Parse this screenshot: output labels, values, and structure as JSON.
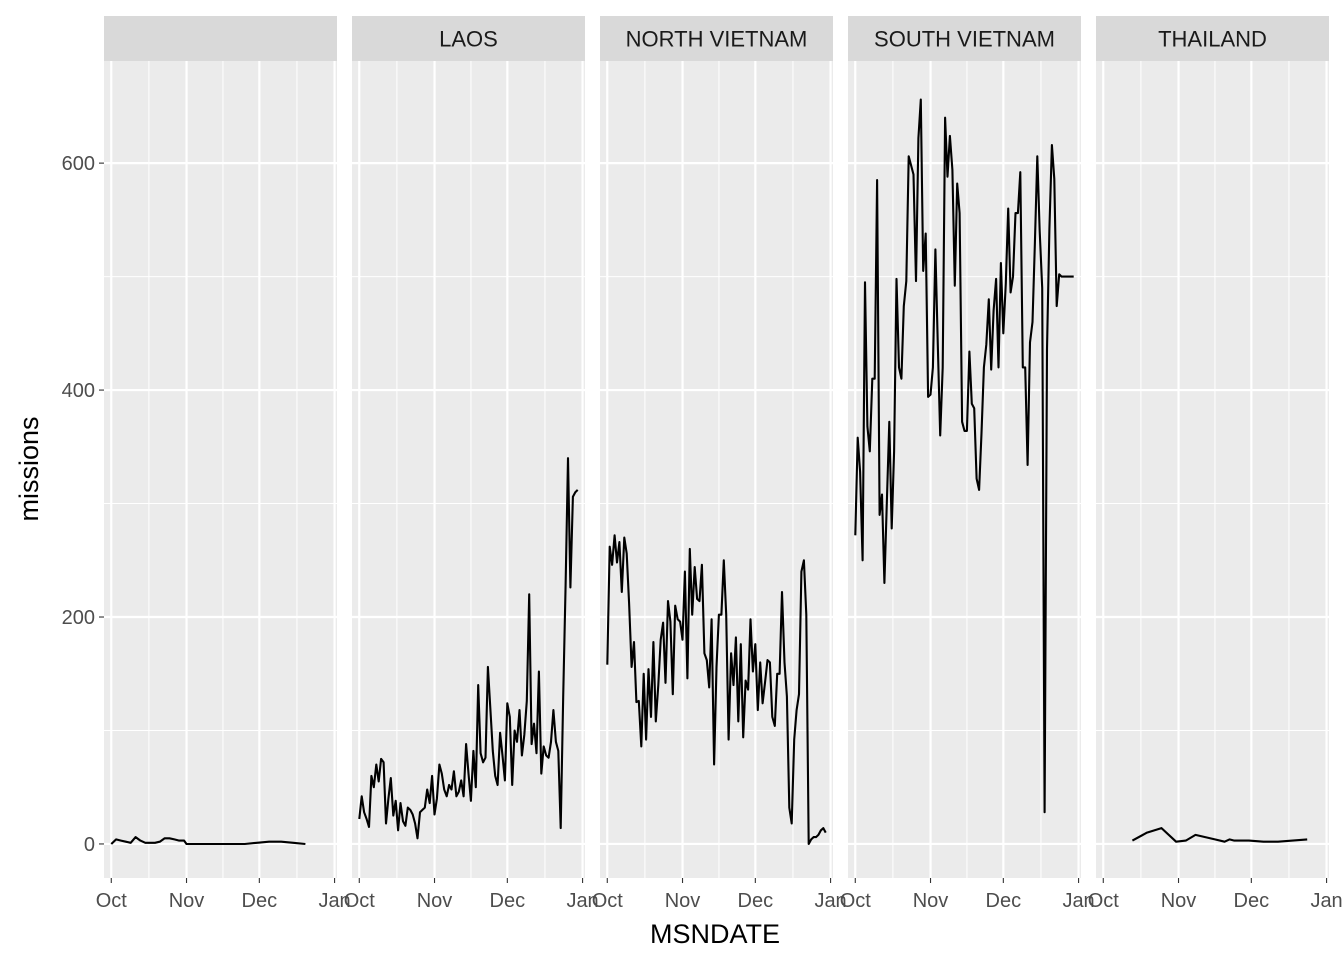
{
  "chart_data": {
    "type": "line",
    "layout": "facet_wrap",
    "xlabel": "MSNDATE",
    "ylabel": "missions",
    "x_ticks": [
      "Oct",
      "Nov",
      "Dec",
      "Jan"
    ],
    "y_ticks": [
      0,
      200,
      400,
      600
    ],
    "ylim": [
      -30,
      690
    ],
    "xlim_days": [
      -3,
      93
    ],
    "grid": true,
    "legend": "none",
    "colors": {
      "panel_bg": "#ebebeb",
      "strip_bg": "#d9d9d9",
      "grid": "#ffffff",
      "line": "#000000"
    },
    "facets": [
      {
        "label": "",
        "series": [
          {
            "x": [
              0,
              2,
              4,
              6,
              8,
              10,
              12,
              14,
              16,
              18,
              20,
              22,
              24,
              26,
              28,
              30,
              31,
              35,
              40,
              45,
              50,
              55,
              60,
              65,
              70,
              75,
              80
            ],
            "y": [
              0,
              4,
              3,
              2,
              1,
              6,
              3,
              1,
              1,
              1,
              2,
              5,
              5,
              4,
              3,
              3,
              0,
              0,
              0,
              0,
              0,
              0,
              1,
              2,
              2,
              1,
              0
            ]
          }
        ]
      },
      {
        "label": "LAOS",
        "series": [
          {
            "x": [
              0,
              1,
              2,
              3,
              4,
              5,
              6,
              7,
              8,
              9,
              10,
              11,
              12,
              13,
              14,
              15,
              16,
              17,
              18,
              19,
              20,
              21,
              22,
              23,
              24,
              25,
              26,
              27,
              28,
              29,
              30,
              31,
              32,
              33,
              34,
              35,
              36,
              37,
              38,
              39,
              40,
              41,
              42,
              43,
              44,
              45,
              46,
              47,
              48,
              49,
              50,
              51,
              52,
              53,
              54,
              55,
              56,
              57,
              58,
              59,
              60,
              61,
              62,
              63,
              64,
              65,
              66,
              67,
              68,
              69,
              70,
              71,
              72,
              73,
              74,
              75,
              76,
              77,
              78,
              79,
              80,
              81,
              82,
              83,
              84,
              85,
              86,
              87,
              88,
              89,
              90
            ],
            "y": [
              22,
              42,
              28,
              22,
              15,
              60,
              50,
              70,
              55,
              75,
              72,
              18,
              40,
              58,
              25,
              38,
              12,
              36,
              20,
              16,
              32,
              30,
              26,
              18,
              5,
              28,
              30,
              32,
              48,
              36,
              60,
              26,
              40,
              70,
              62,
              48,
              42,
              52,
              48,
              64,
              42,
              46,
              56,
              42,
              88,
              62,
              38,
              82,
              50,
              140,
              80,
              72,
              76,
              156,
              120,
              82,
              60,
              52,
              98,
              78,
              56,
              124,
              112,
              52,
              100,
              90,
              118,
              78,
              96,
              126,
              220,
              88,
              106,
              80,
              152,
              62,
              86,
              78,
              76,
              90,
              118,
              90,
              82,
              14,
              130,
              228,
              340,
              226,
              306,
              310,
              312
            ]
          }
        ]
      },
      {
        "label": "NORTH VIETNAM",
        "series": [
          {
            "x": [
              0,
              1,
              2,
              3,
              4,
              5,
              6,
              7,
              8,
              9,
              10,
              11,
              12,
              13,
              14,
              15,
              16,
              17,
              18,
              19,
              20,
              21,
              22,
              23,
              24,
              25,
              26,
              27,
              28,
              29,
              30,
              31,
              32,
              33,
              34,
              35,
              36,
              37,
              38,
              39,
              40,
              41,
              42,
              43,
              44,
              45,
              46,
              47,
              48,
              49,
              50,
              51,
              52,
              53,
              54,
              55,
              56,
              57,
              58,
              59,
              60,
              61,
              62,
              63,
              64,
              65,
              66,
              67,
              68,
              69,
              70,
              71,
              72,
              73,
              74,
              75,
              76,
              77,
              78,
              79,
              80,
              81,
              82,
              83,
              84,
              85,
              86,
              87,
              88,
              89,
              90
            ],
            "y": [
              158,
              262,
              246,
              272,
              248,
              266,
              222,
              270,
              256,
              212,
              156,
              178,
              125,
              126,
              86,
              150,
              92,
              154,
              112,
              178,
              108,
              140,
              180,
              195,
              142,
              214,
              196,
              132,
              210,
              198,
              196,
              180,
              240,
              146,
              260,
              202,
              244,
              216,
              214,
              246,
              168,
              162,
              138,
              198,
              70,
              156,
              202,
              202,
              250,
              202,
              92,
              168,
              140,
              182,
              108,
              176,
              94,
              144,
              136,
              198,
              152,
              176,
              118,
              160,
              124,
              142,
              162,
              160,
              112,
              104,
              150,
              150,
              222,
              160,
              130,
              32,
              18,
              92,
              118,
              132,
              240,
              250,
              202,
              0,
              4,
              6,
              6,
              8,
              12,
              14,
              10
            ]
          }
        ]
      },
      {
        "label": "SOUTH VIETNAM",
        "series": [
          {
            "x": [
              0,
              1,
              2,
              3,
              4,
              5,
              6,
              7,
              8,
              9,
              10,
              11,
              12,
              13,
              14,
              15,
              16,
              17,
              18,
              19,
              20,
              21,
              22,
              23,
              24,
              25,
              26,
              27,
              28,
              29,
              30,
              31,
              32,
              33,
              34,
              35,
              36,
              37,
              38,
              39,
              40,
              41,
              42,
              43,
              44,
              45,
              46,
              47,
              48,
              49,
              50,
              51,
              52,
              53,
              54,
              55,
              56,
              57,
              58,
              59,
              60,
              61,
              62,
              63,
              64,
              65,
              66,
              67,
              68,
              69,
              70,
              71,
              72,
              73,
              74,
              75,
              76,
              77,
              78,
              79,
              80,
              81,
              82,
              83,
              84,
              85,
              86,
              87,
              88,
              89,
              90
            ],
            "y": [
              272,
              358,
              328,
              250,
              495,
              368,
              346,
              410,
              410,
              585,
              290,
              308,
              230,
              300,
              372,
              278,
              346,
              498,
              420,
              410,
              474,
              496,
              606,
              598,
              590,
              496,
              622,
              656,
              505,
              538,
              394,
              396,
              420,
              524,
              440,
              360,
              420,
              640,
              588,
              624,
              594,
              492,
              582,
              556,
              372,
              364,
              364,
              434,
              388,
              384,
              322,
              312,
              362,
              420,
              440,
              480,
              418,
              470,
              498,
              420,
              512,
              450,
              494,
              560,
              486,
              500,
              556,
              556,
              592,
              420,
              420,
              334,
              442,
              460,
              530,
              606,
              540,
              490,
              28,
              436,
              542,
              616,
              586,
              474,
              502,
              500,
              500,
              500,
              500,
              500,
              500
            ]
          }
        ]
      },
      {
        "label": "THAILAND",
        "series": [
          {
            "x": [
              12,
              18,
              24,
              30,
              34,
              38,
              42,
              46,
              50,
              52,
              54,
              56,
              60,
              66,
              72,
              78,
              84
            ],
            "y": [
              3,
              10,
              14,
              2,
              3,
              8,
              6,
              4,
              2,
              4,
              3,
              3,
              3,
              2,
              2,
              3,
              4
            ]
          }
        ]
      }
    ]
  }
}
